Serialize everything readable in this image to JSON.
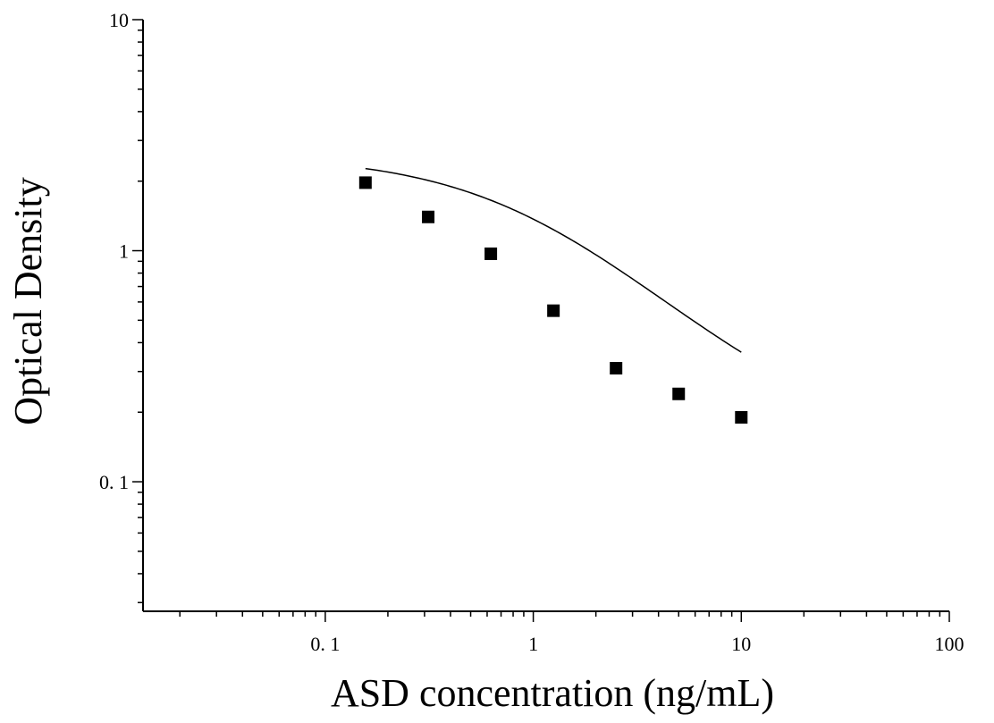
{
  "chart_data": {
    "type": "scatter",
    "title": "",
    "xlabel": "ASD concentration (ng/mL)",
    "ylabel": "Optical Density",
    "xscale": "log",
    "yscale": "log",
    "xlim": [
      0.0133,
      100
    ],
    "ylim": [
      0.0275,
      10
    ],
    "x_ticks": [
      {
        "value": 0.1,
        "label": "0. 1"
      },
      {
        "value": 1,
        "label": "1"
      },
      {
        "value": 10,
        "label": "10"
      },
      {
        "value": 100,
        "label": "100"
      }
    ],
    "y_ticks": [
      {
        "value": 0.1,
        "label": "0. 1"
      },
      {
        "value": 1,
        "label": "1"
      },
      {
        "value": 10,
        "label": "10"
      }
    ],
    "grid": false,
    "legend": "none",
    "marker": "square",
    "color": "#000000",
    "series": [
      {
        "x": [
          0.156,
          0.3125,
          0.625,
          1.25,
          2.5,
          5,
          10
        ],
        "y": [
          1.97,
          1.4,
          0.97,
          0.55,
          0.31,
          0.24,
          0.19
        ]
      }
    ],
    "fit_curve": {
      "type": "4PL",
      "top": 2.6,
      "bottom": 0.14,
      "ec50": 1.0,
      "hill": 1.0,
      "x_range": [
        0.156,
        10
      ]
    }
  }
}
